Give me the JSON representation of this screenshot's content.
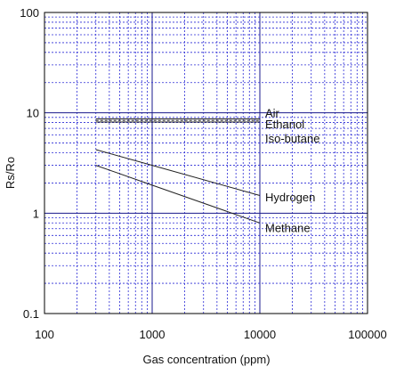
{
  "chart_data": {
    "type": "line",
    "xscale": "log",
    "yscale": "log",
    "xlim": [
      100,
      100000
    ],
    "ylim": [
      0.1,
      100
    ],
    "grid": true,
    "xlabel": "Gas concentration (ppm)",
    "ylabel": "Rs/Ro",
    "x_ticks": [
      "100",
      "1000",
      "10000",
      "100000"
    ],
    "y_ticks": [
      "0.1",
      "1",
      "10",
      "100"
    ],
    "series": [
      {
        "name": "Air",
        "x": [
          300,
          10000
        ],
        "y": [
          8.7,
          8.7
        ],
        "style": "solid"
      },
      {
        "name": "Ethanol",
        "x": [
          300,
          10000
        ],
        "y": [
          8.4,
          8.4
        ],
        "style": "dashed"
      },
      {
        "name": "Iso-butane",
        "x": [
          300,
          10000
        ],
        "y": [
          8.1,
          8.1
        ],
        "style": "solid"
      },
      {
        "name": "Hydrogen",
        "x": [
          300,
          1000,
          10000
        ],
        "y": [
          4.3,
          3.0,
          1.5
        ],
        "style": "solid"
      },
      {
        "name": "Methane",
        "x": [
          300,
          1000,
          10000
        ],
        "y": [
          3.0,
          1.9,
          0.8
        ],
        "style": "solid"
      }
    ],
    "series_label_y": {
      "Air": 10.0,
      "Ethanol": 7.8,
      "Iso-butane": 5.6,
      "Hydrogen": 1.45,
      "Methane": 0.72
    }
  }
}
